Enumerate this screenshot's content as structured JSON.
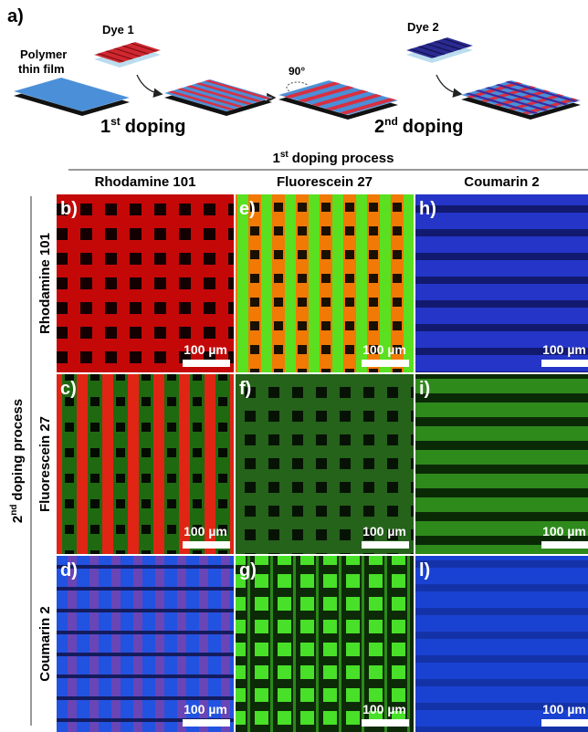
{
  "figure": {
    "panel_label": "a)",
    "schematic": {
      "film_label": [
        "Polymer",
        "thin film"
      ],
      "dye1": "Dye 1",
      "dye2": "Dye 2",
      "rotation": "90°",
      "step1": {
        "number": "1",
        "suffix": "st",
        "text": "doping"
      },
      "step2": {
        "number": "2",
        "suffix": "nd",
        "text": "doping"
      }
    },
    "column_header": {
      "number": "1",
      "suffix": "st",
      "text": "doping process"
    },
    "columns": [
      "Rhodamine 101",
      "Fluorescein 27",
      "Coumarin 2"
    ],
    "row_header": {
      "number": "2",
      "suffix": "nd",
      "text": "doping process"
    },
    "rows": [
      "Rhodamine 101",
      "Fluorescein 27",
      "Coumarin 2"
    ],
    "panels": [
      [
        {
          "label": "b)",
          "scale_bar": "100 µm"
        },
        {
          "label": "e)",
          "scale_bar": "100 µm"
        },
        {
          "label": "h)",
          "scale_bar": "100 µm"
        }
      ],
      [
        {
          "label": "c)",
          "scale_bar": "100 µm"
        },
        {
          "label": "f)",
          "scale_bar": "100 µm"
        },
        {
          "label": "i)",
          "scale_bar": "100 µm"
        }
      ],
      [
        {
          "label": "d)",
          "scale_bar": "100 µm"
        },
        {
          "label": "g)",
          "scale_bar": "100 µm"
        },
        {
          "label": "l)",
          "scale_bar": "100 µm"
        }
      ]
    ]
  }
}
